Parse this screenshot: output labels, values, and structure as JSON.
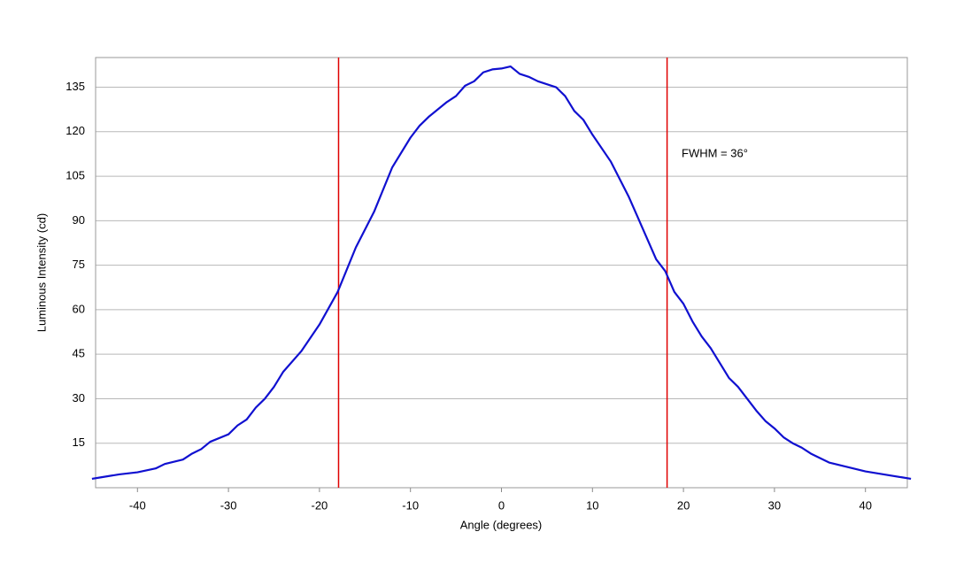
{
  "chart_data": {
    "type": "line",
    "xlabel": "Angle (degrees)",
    "ylabel": "Luminous Intensity (cd)",
    "annotation": "FWHM = 36°",
    "x": [
      -45,
      -44,
      -42,
      -40,
      -38,
      -37,
      -35,
      -34,
      -33,
      -32,
      -30,
      -29,
      -28,
      -27,
      -26,
      -25,
      -24,
      -22,
      -20,
      -18,
      -16,
      -14,
      -12,
      -10,
      -9,
      -8,
      -6,
      -5,
      -4,
      -3,
      -2,
      -1,
      0,
      1,
      2,
      3,
      4,
      6,
      7,
      8,
      9,
      10,
      12,
      14,
      15,
      16,
      17,
      18,
      19,
      20,
      21,
      22,
      23,
      24,
      25,
      26,
      27,
      28,
      29,
      30,
      31,
      32,
      33,
      34,
      35,
      36,
      38,
      40,
      42,
      44,
      45
    ],
    "series": [
      {
        "name": "Luminous Intensity",
        "color": "#1010d0",
        "values": [
          3,
          3.5,
          4.5,
          5.2,
          6.5,
          8,
          9.5,
          11.5,
          13,
          15.5,
          18,
          21,
          23,
          27,
          30,
          34,
          39,
          46,
          55,
          66,
          81,
          93,
          108,
          118,
          122,
          125,
          130,
          132,
          135.5,
          137,
          140,
          141,
          141.3,
          142,
          139.5,
          138.5,
          137,
          135,
          132,
          127,
          124,
          119,
          110,
          98,
          91,
          84,
          77,
          73,
          66,
          62,
          56,
          51,
          47,
          42,
          37,
          34,
          30,
          26,
          22.5,
          20,
          17,
          15,
          13.5,
          11.5,
          10,
          8.5,
          7,
          5.5,
          4.5,
          3.5,
          3
        ]
      }
    ],
    "vlines": [
      -17.9,
      18.2
    ],
    "vline_color": "#e00000",
    "xlim": [
      -44.6,
      44.6
    ],
    "ylim": [
      0,
      145
    ],
    "xticks": [
      -40,
      -30,
      -20,
      -10,
      0,
      10,
      20,
      30,
      40
    ],
    "yticks": [
      15,
      30,
      45,
      60,
      75,
      90,
      105,
      120,
      135
    ],
    "grid": true
  }
}
